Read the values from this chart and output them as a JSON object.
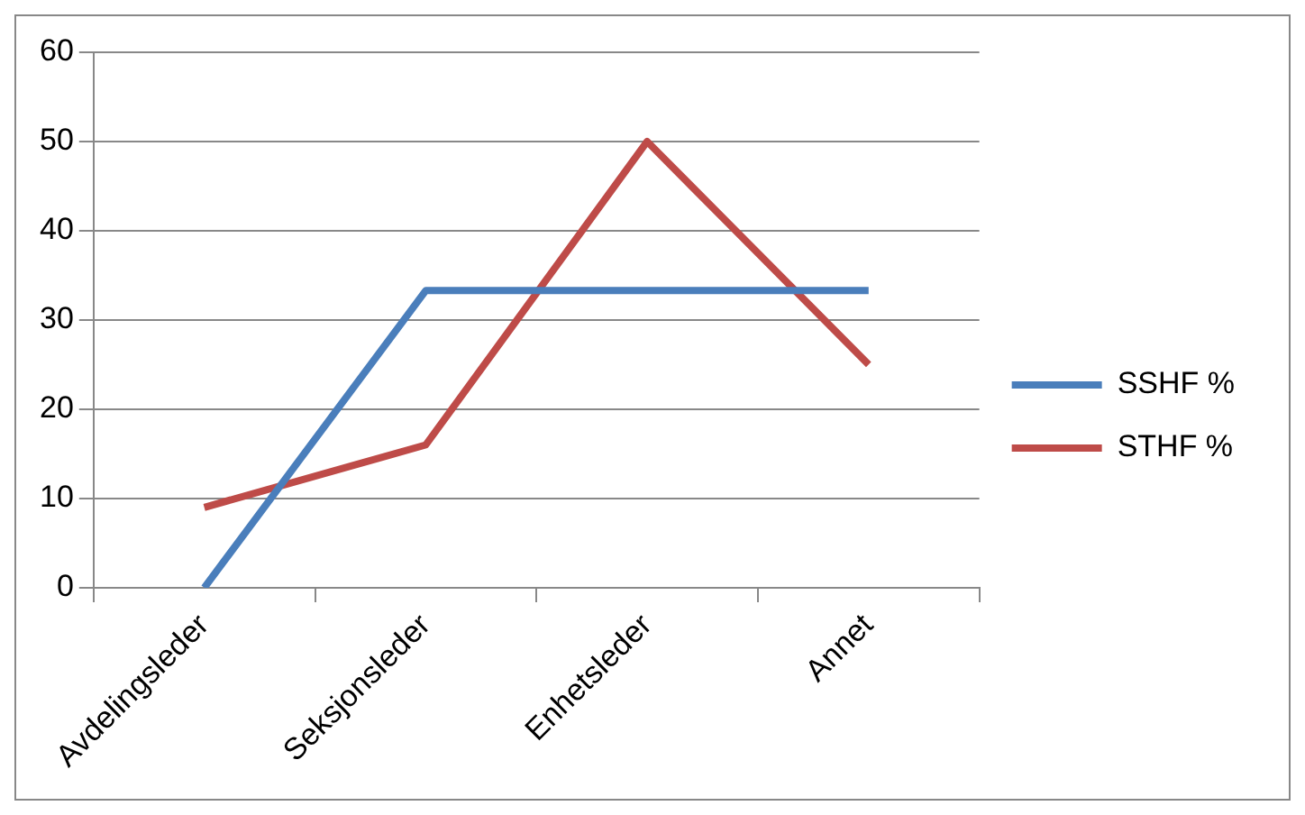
{
  "chart_data": {
    "type": "line",
    "categories": [
      "Avdelingsleder",
      "Seksjonsleder",
      "Enhetsleder",
      "Annet"
    ],
    "series": [
      {
        "name": "SSHF %",
        "color": "#4a7ebb",
        "values": [
          0,
          33.3,
          33.3,
          33.3
        ]
      },
      {
        "name": "STHF %",
        "color": "#be4b48",
        "values": [
          9,
          16,
          50,
          25
        ]
      }
    ],
    "ylim": [
      0,
      60
    ],
    "yticks": [
      0,
      10,
      20,
      30,
      40,
      50,
      60
    ],
    "grid": "y",
    "legend": "right",
    "marker": "none",
    "line_style": "solid"
  }
}
